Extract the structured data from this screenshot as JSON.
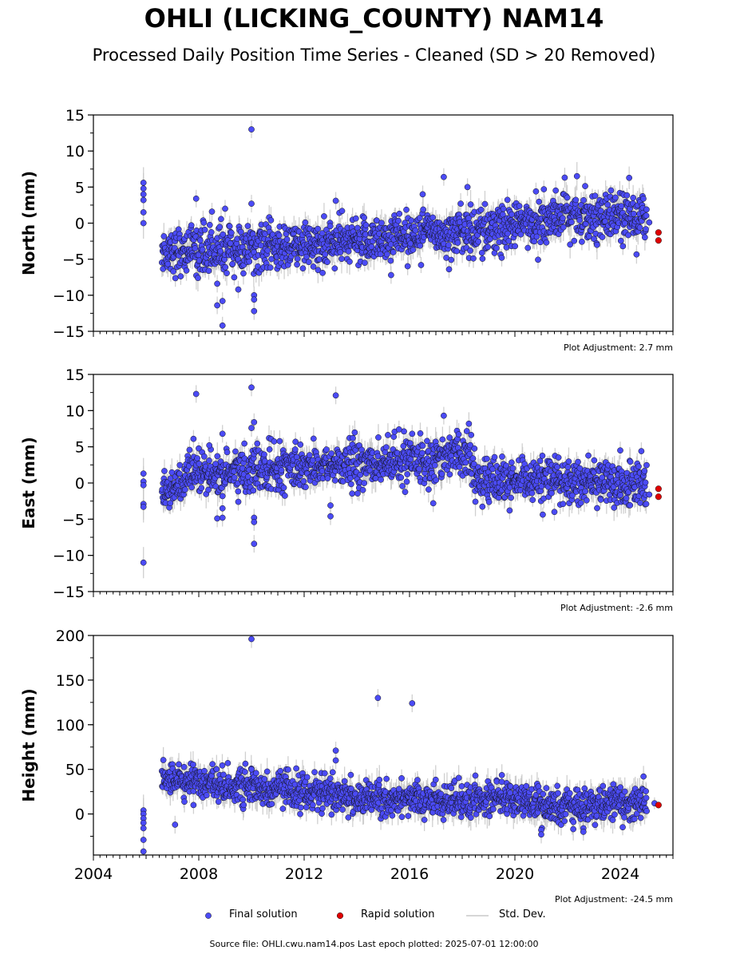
{
  "header": {
    "title": "OHLI (LICKING_COUNTY) NAM14",
    "subtitle": "Processed Daily Position Time Series - Cleaned (SD > 20 Removed)"
  },
  "legend": {
    "final_label": "Final solution",
    "rapid_label": "Rapid solution",
    "std_label": "Std. Dev.",
    "final_color": "#4b4bf5",
    "rapid_color": "#e00000",
    "std_color": "#c8c8c8"
  },
  "footer": {
    "source": "Source file: OHLI.cwu.nam14.pos  Last epoch plotted: 2025-07-01 12:00:00"
  },
  "chart_data": [
    {
      "type": "scatter",
      "component": "north",
      "ylabel": "North (mm)",
      "ylim": [
        -15,
        15
      ],
      "yticks": [
        15,
        10,
        5,
        0,
        -5,
        -10,
        -15
      ],
      "xlim": [
        2004,
        2026
      ],
      "adjustment": "Plot Adjustment: 2.7 mm",
      "trend": [
        [
          2006.6,
          -3.8
        ],
        [
          2010,
          -3.6
        ],
        [
          2013,
          -3.0
        ],
        [
          2016,
          -1.5
        ],
        [
          2018.5,
          -1.0
        ],
        [
          2020,
          -0.5
        ],
        [
          2022,
          1.2
        ],
        [
          2024,
          1.0
        ],
        [
          2025.0,
          0.5
        ]
      ],
      "scatter_sd": 1.6,
      "early_points": [
        [
          2005.9,
          5.6
        ],
        [
          2005.9,
          4.8
        ],
        [
          2005.9,
          4.0
        ],
        [
          2005.9,
          3.2
        ],
        [
          2005.9,
          1.5
        ],
        [
          2005.9,
          0.0
        ]
      ],
      "outliers": [
        [
          2010.0,
          13.0
        ],
        [
          2010.1,
          -10.0
        ],
        [
          2010.1,
          -10.6
        ],
        [
          2010.1,
          -12.2
        ],
        [
          2008.9,
          -14.2
        ],
        [
          2008.9,
          -10.8
        ],
        [
          2008.7,
          -11.4
        ],
        [
          2008.7,
          -8.4
        ],
        [
          2009.5,
          -9.2
        ],
        [
          2007.9,
          3.4
        ],
        [
          2010.0,
          2.7
        ],
        [
          2013.2,
          3.1
        ],
        [
          2016.5,
          4.0
        ],
        [
          2017.3,
          6.4
        ],
        [
          2018.2,
          5.0
        ],
        [
          2020.8,
          4.4
        ],
        [
          2021.1,
          4.7
        ],
        [
          2019.5,
          -4.8
        ],
        [
          2024.1,
          -3.2
        ],
        [
          2015.3,
          -7.2
        ],
        [
          2017.5,
          -6.4
        ],
        [
          2012.7,
          -6.9
        ],
        [
          2014.3,
          -5.5
        ],
        [
          2009.2,
          -2.8
        ],
        [
          2008.5,
          1.6
        ],
        [
          2009.0,
          2.0
        ]
      ],
      "rapid": [
        [
          2025.45,
          -1.3
        ],
        [
          2025.45,
          -2.4
        ]
      ],
      "last_final": [
        2025.1,
        0.1
      ]
    },
    {
      "type": "scatter",
      "component": "east",
      "ylabel": "East (mm)",
      "ylim": [
        -15,
        15
      ],
      "yticks": [
        15,
        10,
        5,
        0,
        -5,
        -10,
        -15
      ],
      "xlim": [
        2004,
        2026
      ],
      "adjustment": "Plot Adjustment: -2.6 mm",
      "trend": [
        [
          2006.6,
          -1.0
        ],
        [
          2008,
          1.0
        ],
        [
          2010,
          1.8
        ],
        [
          2013,
          2.4
        ],
        [
          2016,
          2.8
        ],
        [
          2018.3,
          4.5
        ],
        [
          2018.55,
          0.5
        ],
        [
          2020,
          0.0
        ],
        [
          2022,
          0.5
        ],
        [
          2025.0,
          -0.6
        ]
      ],
      "scatter_sd": 1.5,
      "early_points": [
        [
          2005.9,
          1.3
        ],
        [
          2005.9,
          0.2
        ],
        [
          2005.9,
          -0.3
        ],
        [
          2005.9,
          -2.9
        ],
        [
          2005.9,
          -3.3
        ],
        [
          2005.9,
          -11.0
        ]
      ],
      "outliers": [
        [
          2007.9,
          12.3
        ],
        [
          2010.0,
          13.2
        ],
        [
          2013.2,
          12.1
        ],
        [
          2010.0,
          7.6
        ],
        [
          2010.1,
          8.4
        ],
        [
          2008.9,
          6.8
        ],
        [
          2015.6,
          7.4
        ],
        [
          2016.1,
          6.8
        ],
        [
          2017.3,
          9.3
        ],
        [
          2010.1,
          -4.8
        ],
        [
          2010.1,
          -5.4
        ],
        [
          2010.1,
          -8.4
        ],
        [
          2008.7,
          -4.9
        ],
        [
          2008.9,
          -4.8
        ],
        [
          2008.9,
          -3.5
        ],
        [
          2013.0,
          -4.6
        ],
        [
          2013.0,
          -3.1
        ],
        [
          2016.9,
          -2.8
        ],
        [
          2021.5,
          -4.0
        ],
        [
          2019.8,
          -3.8
        ],
        [
          2024.0,
          4.5
        ],
        [
          2024.8,
          4.4
        ],
        [
          2009.5,
          -2.6
        ],
        [
          2007.8,
          6.1
        ],
        [
          2008.4,
          5.2
        ]
      ],
      "rapid": [
        [
          2025.45,
          -0.8
        ],
        [
          2025.45,
          -1.9
        ]
      ],
      "last_final": [
        2025.1,
        -1.6
      ]
    },
    {
      "type": "scatter",
      "component": "height",
      "ylabel": "Height (mm)",
      "ylim": [
        -46,
        200
      ],
      "yticks": [
        200,
        150,
        100,
        50,
        0
      ],
      "xlim": [
        2004,
        2026
      ],
      "adjustment": "Plot Adjustment: -24.5 mm",
      "xticks": [
        2004,
        2008,
        2012,
        2016,
        2020,
        2024
      ],
      "trend": [
        [
          2006.6,
          40
        ],
        [
          2008,
          38
        ],
        [
          2010,
          28
        ],
        [
          2012,
          26
        ],
        [
          2014,
          18
        ],
        [
          2016,
          17
        ],
        [
          2018,
          15
        ],
        [
          2020,
          18
        ],
        [
          2021,
          8
        ],
        [
          2023,
          10
        ],
        [
          2025.0,
          14
        ]
      ],
      "scatter_sd": 9,
      "early_points": [
        [
          2005.9,
          4
        ],
        [
          2005.9,
          0
        ],
        [
          2005.9,
          -5
        ],
        [
          2005.9,
          -10
        ],
        [
          2005.9,
          -16
        ],
        [
          2005.9,
          -29
        ],
        [
          2005.9,
          -42
        ]
      ],
      "outliers": [
        [
          2010.0,
          196
        ],
        [
          2014.8,
          130
        ],
        [
          2016.1,
          124
        ],
        [
          2013.2,
          71
        ],
        [
          2013.2,
          60
        ],
        [
          2007.1,
          -12
        ],
        [
          2021.0,
          -18
        ],
        [
          2021.0,
          -23
        ],
        [
          2022.6,
          -16
        ],
        [
          2022.6,
          -20
        ],
        [
          2007.8,
          10
        ],
        [
          2010.0,
          50
        ],
        [
          2011.7,
          51
        ],
        [
          2015.6,
          28
        ],
        [
          2016.3,
          38
        ],
        [
          2015.7,
          40
        ],
        [
          2019.5,
          36
        ],
        [
          2018.5,
          43
        ]
      ],
      "rapid": [
        [
          2025.45,
          10
        ]
      ],
      "last_final": [
        2025.3,
        12
      ]
    }
  ]
}
